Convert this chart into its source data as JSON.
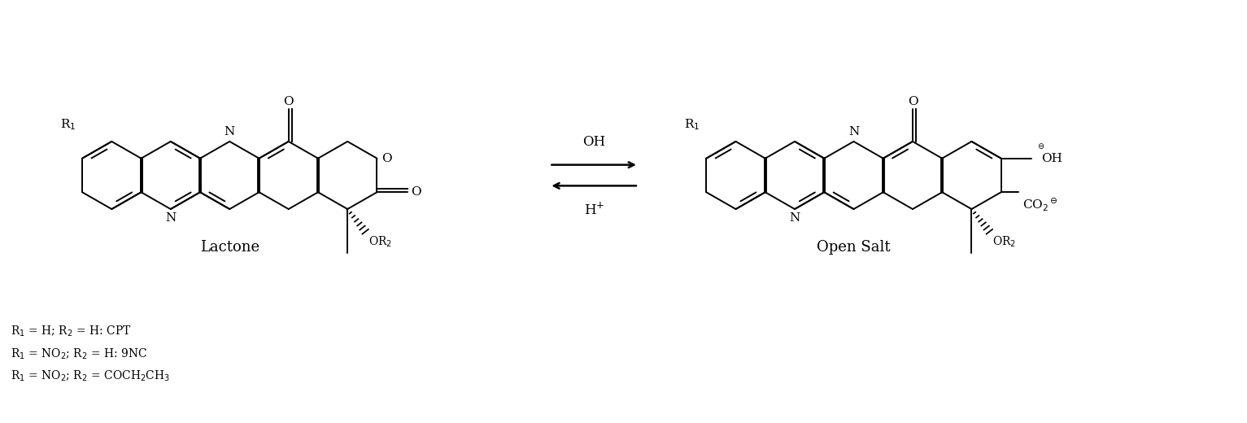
{
  "background_color": "#ffffff",
  "figsize": [
    15.33,
    5.2
  ],
  "dpi": 100,
  "label_lactone": "Lactone",
  "label_open_salt": "Open Salt",
  "footnote_lines": [
    "R$_1$ = H; R$_2$ = H: CPT",
    "R$_1$ = NO$_2$; R$_2$ = H: 9NC",
    "R$_1$ = NO$_2$; R$_2$ = COCH$_2$CH$_3$"
  ],
  "lw": 1.4,
  "blw": 2.8,
  "font_size_label": 13,
  "font_size_atom": 11,
  "font_size_footnote": 10
}
